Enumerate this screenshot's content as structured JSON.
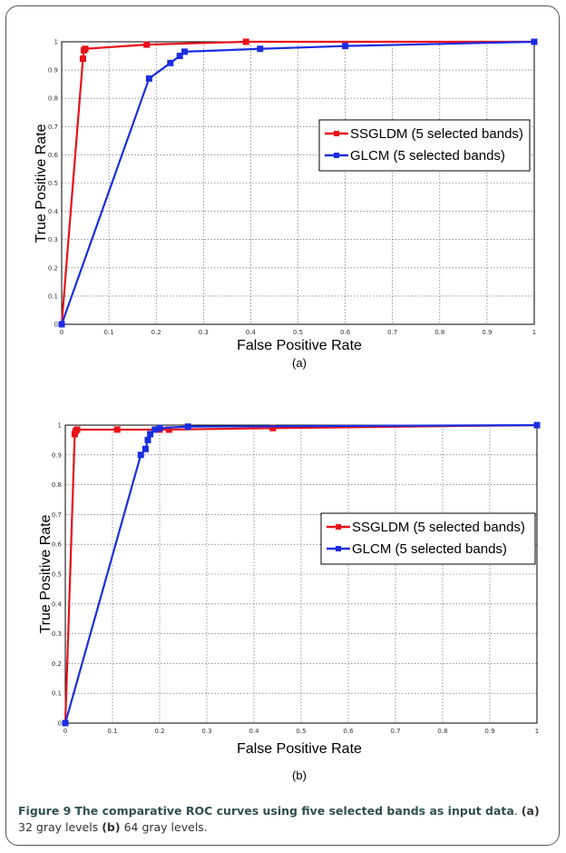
{
  "caption": {
    "label": "Figure 9",
    "title": "The comparative ROC curves using five selected bands as input data",
    "parts": [
      {
        "tag": "(a)",
        "text": "32 gray levels"
      },
      {
        "tag": "(b)",
        "text": "64 gray levels."
      }
    ]
  },
  "colors": {
    "SSGLDM": "#e8101a",
    "GLCM": "#1a2ee0"
  },
  "chart_data": [
    {
      "type": "line",
      "panel_label": "(a)",
      "xlabel": "False Positive Rate",
      "ylabel": "True Positive Rate",
      "xlim": [
        0,
        1
      ],
      "ylim": [
        0,
        1
      ],
      "xticks": [
        "0",
        "0.1",
        "0.2",
        "0.3",
        "0.4",
        "0.5",
        "0.6",
        "0.7",
        "0.8",
        "0.9",
        "1"
      ],
      "yticks": [
        "0",
        "0.1",
        "0.2",
        "0.3",
        "0.4",
        "0.5",
        "0.6",
        "0.7",
        "0.8",
        "0.9",
        "1"
      ],
      "grid": true,
      "legend_position": "right",
      "series": [
        {
          "name": "SSGLDM (5 selected bands)",
          "x": [
            0,
            0.045,
            0.047,
            0.05,
            0.18,
            0.39,
            1
          ],
          "y": [
            0,
            0.94,
            0.97,
            0.975,
            0.99,
            1.0,
            1.0
          ]
        },
        {
          "name": "GLCM (5 selected bands)",
          "x": [
            0,
            0.185,
            0.23,
            0.25,
            0.26,
            0.42,
            0.6,
            1
          ],
          "y": [
            0,
            0.87,
            0.925,
            0.95,
            0.965,
            0.975,
            0.985,
            1.0
          ]
        }
      ]
    },
    {
      "type": "line",
      "panel_label": "(b)",
      "xlabel": "False Positive Rate",
      "ylabel": "True Positive Rate",
      "xlim": [
        0,
        1
      ],
      "ylim": [
        0,
        1
      ],
      "xticks": [
        "0",
        "0.1",
        "0.2",
        "0.3",
        "0.4",
        "0.5",
        "0.6",
        "0.7",
        "0.8",
        "0.9",
        "1"
      ],
      "yticks": [
        "0",
        "0.1",
        "0.2",
        "0.3",
        "0.4",
        "0.5",
        "0.6",
        "0.7",
        "0.8",
        "0.9",
        "1"
      ],
      "grid": true,
      "legend_position": "right",
      "series": [
        {
          "name": "SSGLDM (5 selected bands)",
          "x": [
            0,
            0.02,
            0.022,
            0.025,
            0.11,
            0.2,
            0.22,
            0.44,
            1
          ],
          "y": [
            0,
            0.97,
            0.98,
            0.985,
            0.985,
            0.985,
            0.985,
            0.99,
            1.0
          ]
        },
        {
          "name": "GLCM (5 selected bands)",
          "x": [
            0,
            0.16,
            0.17,
            0.175,
            0.18,
            0.19,
            0.2,
            0.26,
            1
          ],
          "y": [
            0,
            0.9,
            0.92,
            0.95,
            0.97,
            0.985,
            0.99,
            0.995,
            1.0
          ]
        }
      ]
    }
  ]
}
